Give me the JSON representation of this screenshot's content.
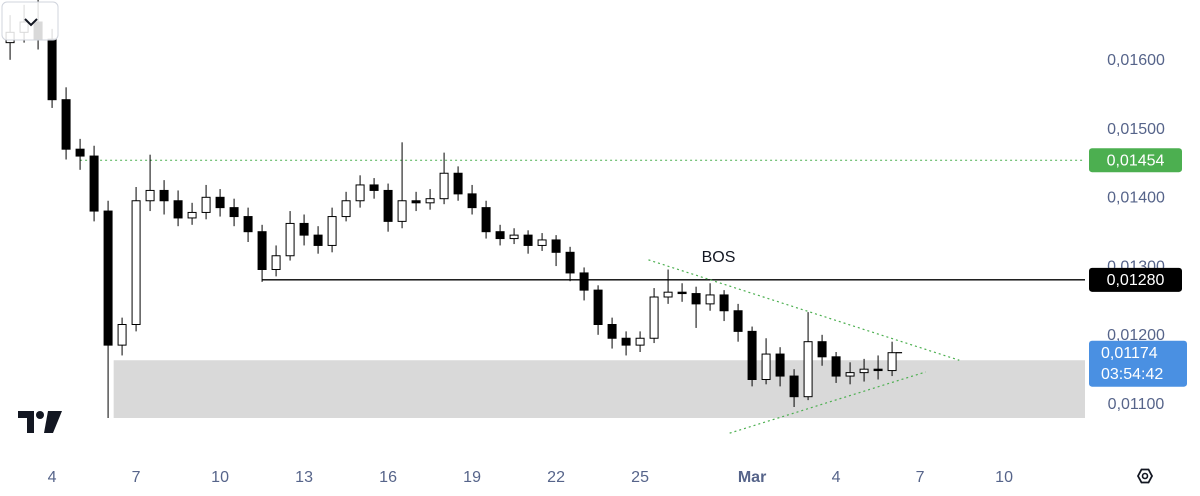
{
  "chart_data": {
    "type": "candlestick",
    "x": [
      2.5,
      3,
      3.5,
      4,
      4.5,
      5,
      5.5,
      6,
      6.5,
      7,
      7.5,
      8,
      8.5,
      9,
      9.5,
      10,
      10.5,
      11,
      11.5,
      12,
      12.5,
      13,
      13.5,
      14,
      14.5,
      15,
      15.5,
      16,
      16.5,
      17,
      17.5,
      18,
      18.5,
      19,
      19.5,
      20,
      20.5,
      21,
      21.5,
      22,
      22.5,
      23,
      23.5,
      24,
      24.5,
      25,
      25.5,
      26,
      26.5,
      27,
      27.5,
      28,
      28.5,
      29,
      29.5,
      30,
      30.5,
      31,
      31.5,
      32,
      32.5,
      33,
      33.5,
      34
    ],
    "open": [
      0.01625,
      0.0164,
      0.01655,
      0.0163,
      0.01542,
      0.0147,
      0.0146,
      0.0138,
      0.01185,
      0.01215,
      0.01395,
      0.0141,
      0.01395,
      0.0137,
      0.01378,
      0.014,
      0.01385,
      0.01372,
      0.0135,
      0.01295,
      0.01315,
      0.01362,
      0.01345,
      0.0133,
      0.01372,
      0.01395,
      0.01418,
      0.0141,
      0.01365,
      0.01395,
      0.01392,
      0.01398,
      0.01435,
      0.01405,
      0.01385,
      0.0135,
      0.0134,
      0.01345,
      0.0133,
      0.01338,
      0.0132,
      0.0129,
      0.01265,
      0.01215,
      0.01195,
      0.01185,
      0.01195,
      0.01255,
      0.01262,
      0.0126,
      0.01245,
      0.01258,
      0.01235,
      0.01205,
      0.01135,
      0.01172,
      0.0114,
      0.0111,
      0.0119,
      0.01168,
      0.0114,
      0.01145,
      0.0115,
      0.01148
    ],
    "high": [
      0.01665,
      0.0168,
      0.01687,
      0.01645,
      0.0156,
      0.01485,
      0.01475,
      0.01395,
      0.01225,
      0.01415,
      0.01462,
      0.01425,
      0.0141,
      0.01392,
      0.01418,
      0.01412,
      0.01398,
      0.01385,
      0.0136,
      0.0133,
      0.0138,
      0.01375,
      0.01358,
      0.01385,
      0.01408,
      0.01432,
      0.01428,
      0.0142,
      0.0148,
      0.01408,
      0.01412,
      0.01465,
      0.01445,
      0.01418,
      0.01395,
      0.0136,
      0.01355,
      0.01352,
      0.01348,
      0.01345,
      0.01328,
      0.01298,
      0.01272,
      0.01225,
      0.01205,
      0.01205,
      0.01268,
      0.01295,
      0.01275,
      0.0127,
      0.01275,
      0.01265,
      0.01245,
      0.01212,
      0.01195,
      0.01182,
      0.0115,
      0.01233,
      0.012,
      0.01175,
      0.0116,
      0.01165,
      0.0117,
      0.0119
    ],
    "low": [
      0.016,
      0.01625,
      0.01615,
      0.0153,
      0.01455,
      0.0144,
      0.01365,
      0.01079,
      0.0117,
      0.01205,
      0.0138,
      0.01375,
      0.01358,
      0.0136,
      0.01368,
      0.01372,
      0.01358,
      0.01335,
      0.01277,
      0.01285,
      0.01308,
      0.0133,
      0.01318,
      0.0132,
      0.01365,
      0.01385,
      0.01398,
      0.0135,
      0.01355,
      0.0138,
      0.01382,
      0.0139,
      0.01395,
      0.01375,
      0.0134,
      0.0133,
      0.01332,
      0.01318,
      0.01322,
      0.013,
      0.01278,
      0.0125,
      0.012,
      0.0118,
      0.0117,
      0.01175,
      0.01188,
      0.01245,
      0.01248,
      0.0121,
      0.01235,
      0.0122,
      0.0119,
      0.01125,
      0.01128,
      0.01125,
      0.01095,
      0.01105,
      0.01155,
      0.0113,
      0.01128,
      0.01132,
      0.01135,
      0.0114
    ],
    "close": [
      0.0164,
      0.01655,
      0.0163,
      0.01542,
      0.0147,
      0.0146,
      0.0138,
      0.01185,
      0.01215,
      0.01395,
      0.0141,
      0.01395,
      0.0137,
      0.01378,
      0.014,
      0.01385,
      0.01372,
      0.0135,
      0.01295,
      0.01315,
      0.01362,
      0.01345,
      0.0133,
      0.01372,
      0.01395,
      0.01418,
      0.0141,
      0.01365,
      0.01395,
      0.01392,
      0.01398,
      0.01435,
      0.01405,
      0.01385,
      0.0135,
      0.0134,
      0.01345,
      0.0133,
      0.01338,
      0.0132,
      0.0129,
      0.01265,
      0.01215,
      0.01195,
      0.01185,
      0.01195,
      0.01255,
      0.01262,
      0.0126,
      0.01245,
      0.01258,
      0.01235,
      0.01205,
      0.01135,
      0.01172,
      0.0114,
      0.0111,
      0.0119,
      0.01168,
      0.0114,
      0.01145,
      0.0115,
      0.01148,
      0.01174
    ],
    "up_color": "#ffffff",
    "down_color": "#000000",
    "xlim": [
      2.14,
      40.89
    ],
    "xticks": [
      4,
      7,
      10,
      13,
      16,
      19,
      22,
      25,
      {
        "value": 29,
        "label": "Mar"
      },
      {
        "value": 32,
        "label": "4"
      },
      {
        "value": 35,
        "label": "7"
      },
      {
        "value": 38,
        "label": "10"
      }
    ],
    "ylim": [
      0.01015,
      0.01687
    ],
    "yticks": [
      {
        "value": 0.011,
        "label": "0,01100"
      },
      {
        "value": 0.012,
        "label": "0,01200"
      },
      {
        "value": 0.013,
        "label": "0,01300"
      },
      {
        "value": 0.014,
        "label": "0,01400"
      },
      {
        "value": 0.015,
        "label": "0,01500"
      },
      {
        "value": 0.016,
        "label": "0,01600"
      }
    ],
    "zone": {
      "x_start": 6.2,
      "low": 0.01079,
      "high": 0.01163,
      "color": "#d9d9d9"
    },
    "levels": [
      {
        "value": 0.01454,
        "label": "0,01454",
        "color": "#4caf50",
        "style": "dotted",
        "x_start": 5
      },
      {
        "value": 0.0128,
        "label": "0,01280",
        "color": "#000000",
        "style": "solid",
        "x_start": 11.5,
        "text": "BOS",
        "text_x": 27.8
      }
    ],
    "trendlines": [
      {
        "x": [
          25.3,
          36.4
        ],
        "y": [
          0.01309,
          0.01163
        ]
      },
      {
        "x": [
          28.2,
          35.2
        ],
        "y": [
          0.01057,
          0.01146
        ]
      }
    ],
    "trendline_color": "#4caf50",
    "last_price": {
      "value": 0.01174,
      "label": "0,01174",
      "countdown": "03:54:42",
      "color": "#4a90e2"
    }
  }
}
